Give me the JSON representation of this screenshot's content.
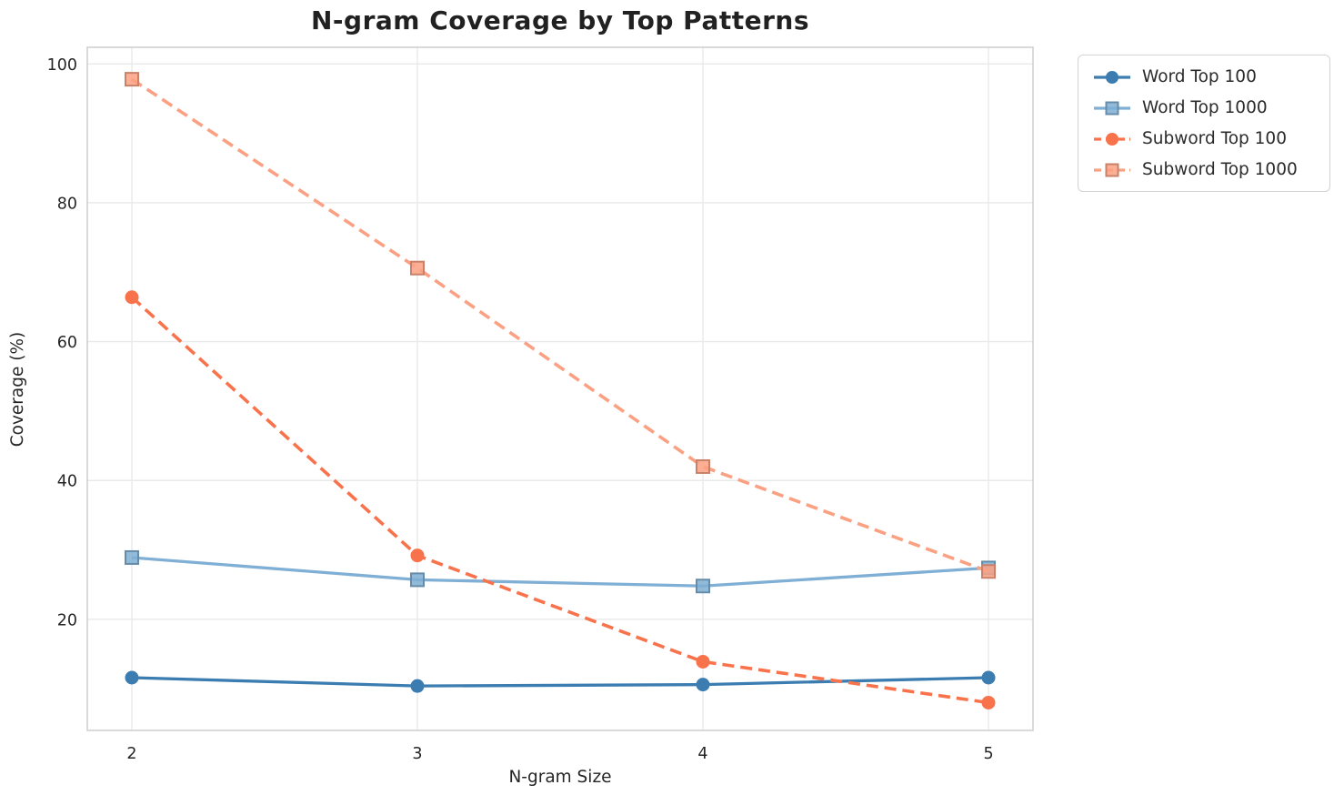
{
  "chart_data": {
    "type": "line",
    "title": "N-gram Coverage by Top Patterns",
    "xlabel": "N-gram Size",
    "ylabel": "Coverage (%)",
    "x": [
      2,
      3,
      4,
      5
    ],
    "xtick_labels": [
      "2",
      "3",
      "4",
      "5"
    ],
    "ytick_values": [
      20,
      40,
      60,
      80,
      100
    ],
    "ytick_labels": [
      "20",
      "40",
      "60",
      "80",
      "100"
    ],
    "xlim": [
      1.844,
      5.156
    ],
    "ylim": [
      4.0,
      102.4
    ],
    "grid": true,
    "legend_position": "outside-upper-right",
    "colors": {
      "grid": "#e9e9e9",
      "spine": "#d0d0d0",
      "tick_text": "#262626",
      "title_text": "#212121"
    },
    "series": [
      {
        "name": "Word Top 100",
        "values": [
          11.6,
          10.4,
          10.6,
          11.6
        ],
        "color": "#3C7DB1",
        "style": "solid",
        "marker": "circle"
      },
      {
        "name": "Word Top 1000",
        "values": [
          28.9,
          25.7,
          24.8,
          27.4
        ],
        "color": "#7FAFD4",
        "style": "solid",
        "marker": "square"
      },
      {
        "name": "Subword Top 100",
        "values": [
          66.4,
          29.2,
          13.9,
          8.0
        ],
        "color": "#F8734C",
        "style": "dashed",
        "marker": "circle"
      },
      {
        "name": "Subword Top 1000",
        "values": [
          97.8,
          70.6,
          42.0,
          26.9
        ],
        "color": "#FBA183",
        "style": "dashed",
        "marker": "square"
      }
    ]
  }
}
